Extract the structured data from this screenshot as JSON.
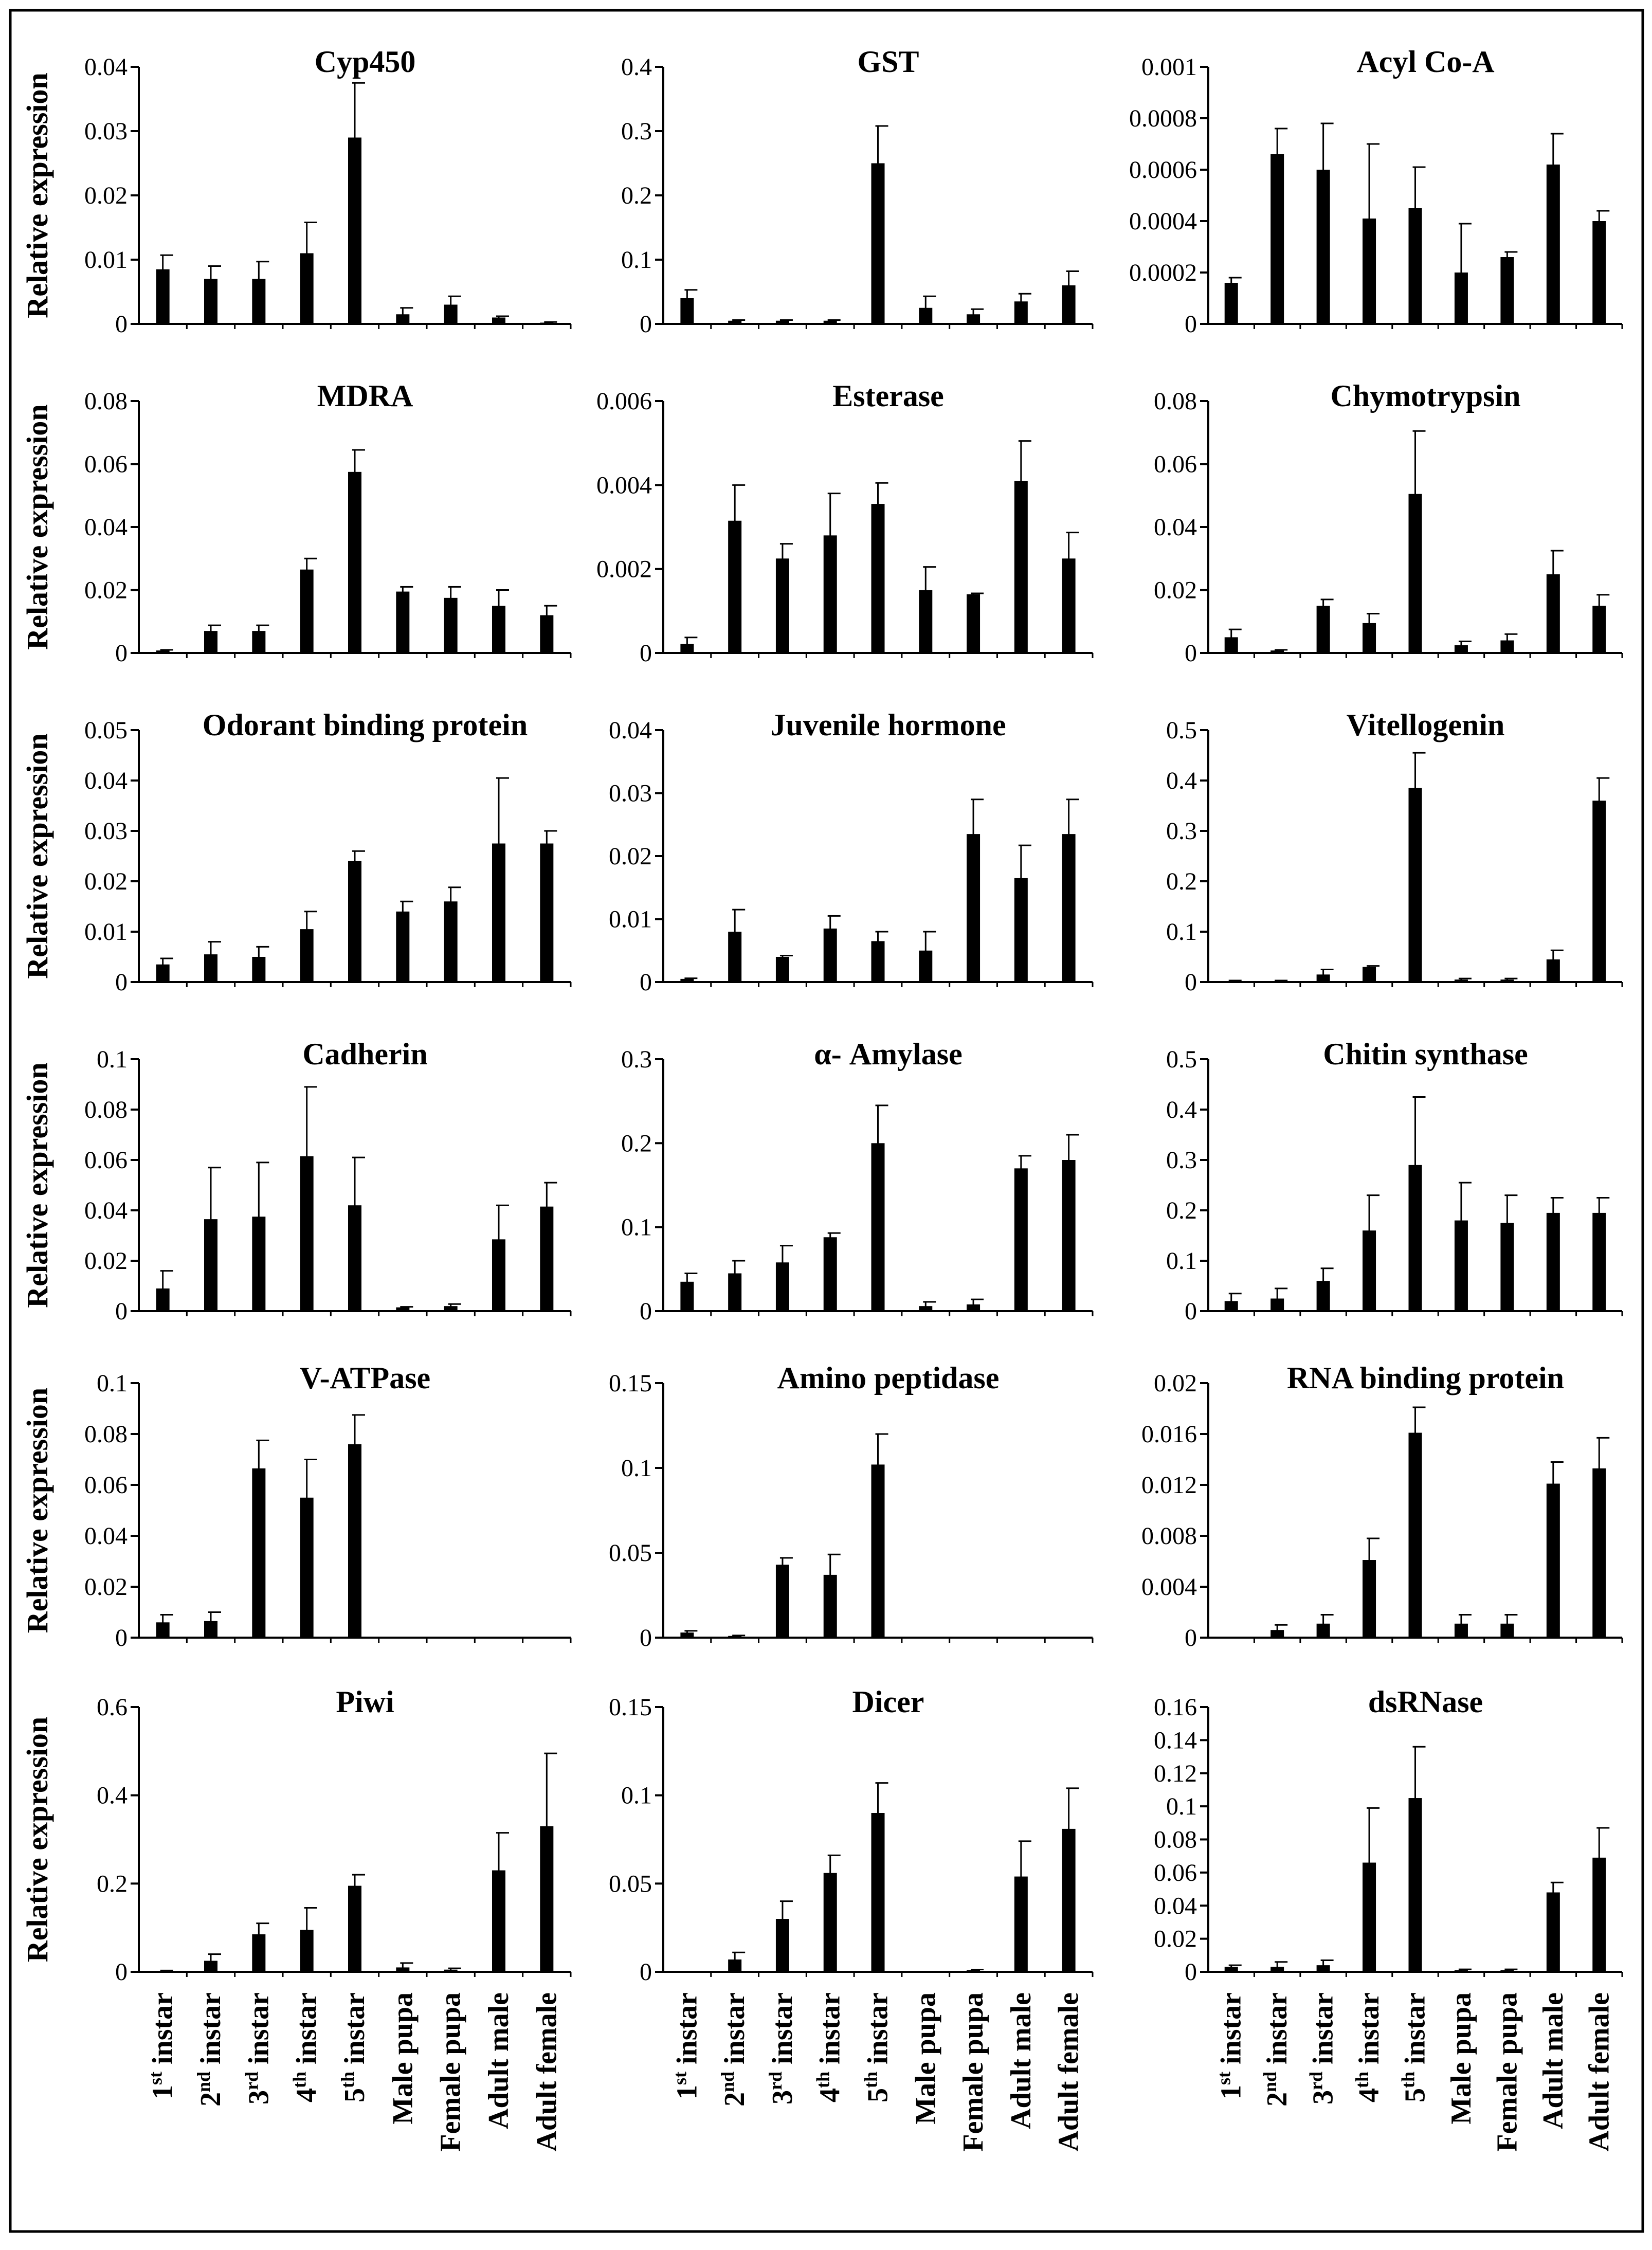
{
  "figure": {
    "ylabel": "Relative expression",
    "categories": [
      "1st instar",
      "2nd instar",
      "3rd instar",
      "4th instar",
      "5th instar",
      "Male pupa",
      "Female pupa",
      "Adult  male",
      "Adult  female"
    ],
    "category_parts": [
      {
        "pre": "1",
        "sup": "st",
        "post": " instar"
      },
      {
        "pre": "2",
        "sup": "nd",
        "post": " instar"
      },
      {
        "pre": "3",
        "sup": "rd",
        "post": " instar"
      },
      {
        "pre": "4",
        "sup": "th",
        "post": " instar"
      },
      {
        "pre": "5",
        "sup": "th",
        "post": " instar"
      },
      {
        "pre": "Male pupa",
        "sup": "",
        "post": ""
      },
      {
        "pre": "Female pupa",
        "sup": "",
        "post": ""
      },
      {
        "pre": "Adult  male",
        "sup": "",
        "post": ""
      },
      {
        "pre": "Adult  female",
        "sup": "",
        "post": ""
      }
    ]
  },
  "chart_data": [
    {
      "type": "bar",
      "title": "Cyp450",
      "ylabel": "Relative expression",
      "ylim": [
        0,
        0.04
      ],
      "ticks": [
        "0",
        "0.01",
        "0.02",
        "0.03",
        "0.04"
      ],
      "values": [
        0.0085,
        0.007,
        0.007,
        0.011,
        0.029,
        0.0015,
        0.003,
        0.001,
        0.0002
      ],
      "errors": [
        0.0022,
        0.002,
        0.0027,
        0.0048,
        0.0085,
        0.001,
        0.0013,
        0.0002,
        0.0001
      ]
    },
    {
      "type": "bar",
      "title": "GST",
      "ylabel": "Relative expression",
      "ylim": [
        0,
        0.4
      ],
      "ticks": [
        "0",
        "0.1",
        "0.2",
        "0.3",
        "0.4"
      ],
      "values": [
        0.04,
        0.005,
        0.005,
        0.005,
        0.25,
        0.025,
        0.015,
        0.035,
        0.06
      ],
      "errors": [
        0.013,
        0.001,
        0.001,
        0.001,
        0.058,
        0.018,
        0.008,
        0.012,
        0.022
      ]
    },
    {
      "type": "bar",
      "title": "Acyl Co-A",
      "ylabel": "",
      "ylim": [
        0,
        0.001
      ],
      "ticks": [
        "0",
        "0.0002",
        "0.0004",
        "0.0006",
        "0.0008",
        "0.001"
      ],
      "values": [
        0.00016,
        0.00066,
        0.0006,
        0.00041,
        0.00045,
        0.0002,
        0.00026,
        0.00062,
        0.0004
      ],
      "errors": [
        2e-05,
        0.0001,
        0.00018,
        0.00029,
        0.00016,
        0.00019,
        2e-05,
        0.00012,
        4e-05
      ]
    },
    {
      "type": "bar",
      "title": "MDRA",
      "ylabel": "Relative expression",
      "ylim": [
        0,
        0.08
      ],
      "ticks": [
        "0",
        "0.02",
        "0.04",
        "0.06",
        "0.08"
      ],
      "values": [
        0.0008,
        0.007,
        0.007,
        0.0265,
        0.0575,
        0.0195,
        0.0175,
        0.015,
        0.012
      ],
      "errors": [
        0.0002,
        0.0018,
        0.0018,
        0.0035,
        0.007,
        0.0015,
        0.0035,
        0.005,
        0.003
      ]
    },
    {
      "type": "bar",
      "title": "Esterase",
      "ylabel": "",
      "ylim": [
        0,
        0.006
      ],
      "ticks": [
        "0",
        "0.002",
        "0.004",
        "0.006"
      ],
      "values": [
        0.00022,
        0.00315,
        0.00225,
        0.0028,
        0.00355,
        0.0015,
        0.0014,
        0.0041,
        0.00225
      ],
      "errors": [
        0.00015,
        0.00085,
        0.00035,
        0.001,
        0.0005,
        0.00055,
        2e-05,
        0.00095,
        0.00062
      ]
    },
    {
      "type": "bar",
      "title": "Chymotrypsin",
      "ylabel": "",
      "ylim": [
        0,
        0.08
      ],
      "ticks": [
        "0",
        "0.02",
        "0.04",
        "0.06",
        "0.08"
      ],
      "values": [
        0.005,
        0.0008,
        0.015,
        0.0095,
        0.0505,
        0.0025,
        0.004,
        0.025,
        0.015
      ],
      "errors": [
        0.0025,
        0.0002,
        0.002,
        0.003,
        0.02,
        0.0012,
        0.002,
        0.0075,
        0.0035
      ]
    },
    {
      "type": "bar",
      "title": "Odorant  binding  protein",
      "ylabel": "Relative expression",
      "ylim": [
        0,
        0.05
      ],
      "ticks": [
        "0",
        "0.01",
        "0.02",
        "0.03",
        "0.04",
        "0.05"
      ],
      "values": [
        0.0035,
        0.0055,
        0.005,
        0.0105,
        0.024,
        0.014,
        0.016,
        0.0275,
        0.0275
      ],
      "errors": [
        0.0012,
        0.0025,
        0.002,
        0.0035,
        0.002,
        0.002,
        0.0028,
        0.013,
        0.0025
      ]
    },
    {
      "type": "bar",
      "title": "Juvenile hormone",
      "ylabel": "",
      "ylim": [
        0,
        0.04
      ],
      "ticks": [
        "0",
        "0.01",
        "0.02",
        "0.03",
        "0.04"
      ],
      "values": [
        0.0005,
        0.008,
        0.004,
        0.0085,
        0.0065,
        0.005,
        0.0235,
        0.0165,
        0.0235
      ],
      "errors": [
        0.0001,
        0.0035,
        0.0002,
        0.002,
        0.0015,
        0.003,
        0.0055,
        0.0052,
        0.0055
      ]
    },
    {
      "type": "bar",
      "title": "Vitellogenin",
      "ylabel": "",
      "ylim": [
        0,
        0.5
      ],
      "ticks": [
        "0",
        "0.1",
        "0.2",
        "0.3",
        "0.4",
        "0.5"
      ],
      "values": [
        0.002,
        0.002,
        0.015,
        0.03,
        0.385,
        0.005,
        0.005,
        0.045,
        0.36
      ],
      "errors": [
        0.001,
        0.001,
        0.01,
        0.002,
        0.07,
        0.002,
        0.002,
        0.018,
        0.045
      ]
    },
    {
      "type": "bar",
      "title": "Cadherin",
      "ylabel": "Relative expression",
      "ylim": [
        0,
        0.1
      ],
      "ticks": [
        "0",
        "0.02",
        "0.04",
        "0.06",
        "0.08",
        "0.1"
      ],
      "values": [
        0.009,
        0.0365,
        0.0375,
        0.0615,
        0.042,
        0.0015,
        0.002,
        0.0285,
        0.0415
      ],
      "errors": [
        0.007,
        0.0205,
        0.0215,
        0.0275,
        0.019,
        0.0002,
        0.0008,
        0.0135,
        0.0095
      ]
    },
    {
      "type": "bar",
      "title": "α- Amylase",
      "ylabel": "",
      "ylim": [
        0,
        0.3
      ],
      "ticks": [
        "0",
        "0.1",
        "0.2",
        "0.3"
      ],
      "values": [
        0.035,
        0.045,
        0.058,
        0.088,
        0.2,
        0.006,
        0.008,
        0.17,
        0.18
      ],
      "errors": [
        0.01,
        0.015,
        0.02,
        0.005,
        0.045,
        0.005,
        0.006,
        0.015,
        0.03
      ]
    },
    {
      "type": "bar",
      "title": "Chitin  synthase",
      "ylabel": "",
      "ylim": [
        0,
        0.5
      ],
      "ticks": [
        "0",
        "0.1",
        "0.2",
        "0.3",
        "0.4",
        "0.5"
      ],
      "values": [
        0.02,
        0.025,
        0.06,
        0.16,
        0.29,
        0.18,
        0.175,
        0.195,
        0.195
      ],
      "errors": [
        0.015,
        0.02,
        0.025,
        0.07,
        0.135,
        0.075,
        0.055,
        0.03,
        0.03
      ]
    },
    {
      "type": "bar",
      "title": "V-ATPase",
      "ylabel": "Relative expression",
      "ylim": [
        0,
        0.1
      ],
      "ticks": [
        "0",
        "0.02",
        "0.04",
        "0.06",
        "0.08",
        "0.1"
      ],
      "values": [
        0.006,
        0.0065,
        0.0665,
        0.055,
        0.076,
        0,
        0,
        0,
        0
      ],
      "errors": [
        0.003,
        0.0035,
        0.011,
        0.015,
        0.0115,
        0,
        0,
        0,
        0
      ]
    },
    {
      "type": "bar",
      "title": "Amino  peptidase",
      "ylabel": "",
      "ylim": [
        0,
        0.15
      ],
      "ticks": [
        "0",
        "0.05",
        "0.1",
        "0.15"
      ],
      "values": [
        0.003,
        0.001,
        0.043,
        0.037,
        0.102,
        0,
        0,
        0,
        0
      ],
      "errors": [
        0.001,
        0.0003,
        0.004,
        0.012,
        0.018,
        0,
        0,
        0,
        0
      ]
    },
    {
      "type": "bar",
      "title": "RNA binding  protein",
      "ylabel": "",
      "ylim": [
        0,
        0.02
      ],
      "ticks": [
        "0",
        "0.004",
        "0.008",
        "0.012",
        "0.016",
        "0.02"
      ],
      "values": [
        0,
        0.0006,
        0.0011,
        0.0061,
        0.0161,
        0.0011,
        0.0011,
        0.0121,
        0.0133
      ],
      "errors": [
        0,
        0.0004,
        0.0007,
        0.0017,
        0.002,
        0.0007,
        0.0007,
        0.0017,
        0.0024
      ]
    },
    {
      "type": "bar",
      "title": "Piwi",
      "ylabel": "Relative expression",
      "ylim": [
        0,
        0.6
      ],
      "ticks": [
        "0",
        "0.2",
        "0.4",
        "0.6"
      ],
      "values": [
        0.002,
        0.025,
        0.085,
        0.095,
        0.195,
        0.01,
        0.005,
        0.23,
        0.33
      ],
      "errors": [
        0.001,
        0.015,
        0.025,
        0.05,
        0.025,
        0.01,
        0.003,
        0.085,
        0.165
      ]
    },
    {
      "type": "bar",
      "title": "Dicer",
      "ylabel": "",
      "ylim": [
        0,
        0.15
      ],
      "ticks": [
        "0",
        "0.05",
        "0.1",
        "0.15"
      ],
      "values": [
        0,
        0.007,
        0.03,
        0.056,
        0.09,
        0,
        0.001,
        0.054,
        0.081
      ],
      "errors": [
        0,
        0.004,
        0.01,
        0.01,
        0.017,
        0,
        0.0003,
        0.02,
        0.023
      ]
    },
    {
      "type": "bar",
      "title": "dsRNase",
      "ylabel": "",
      "ylim": [
        0,
        0.16
      ],
      "ticks": [
        "0",
        "0.02",
        "0.04",
        "0.06",
        "0.08",
        "0.1",
        "0.12",
        "0.14",
        "0.16"
      ],
      "values": [
        0.003,
        0.003,
        0.004,
        0.066,
        0.105,
        0.001,
        0.001,
        0.048,
        0.069
      ],
      "errors": [
        0.001,
        0.003,
        0.003,
        0.033,
        0.031,
        0.0005,
        0.0005,
        0.006,
        0.018
      ]
    }
  ]
}
